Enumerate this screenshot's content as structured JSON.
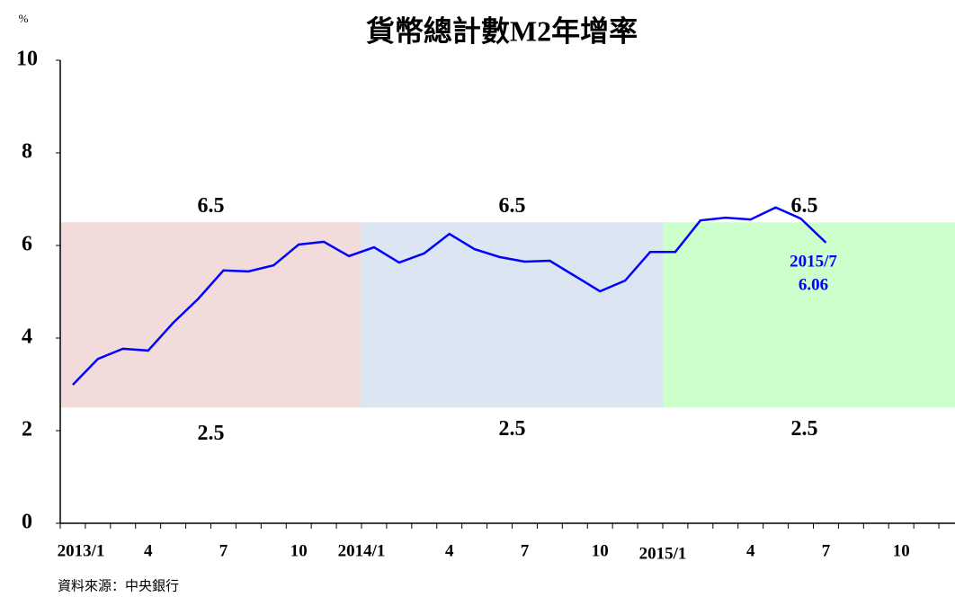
{
  "chart_data": {
    "type": "line",
    "title": "貨幣總計數M2年增率",
    "y_unit": "%",
    "source": "資料來源：中央銀行",
    "categories": [
      "2013/1",
      null,
      null,
      "4",
      null,
      null,
      "7",
      null,
      null,
      "10",
      null,
      null,
      "2014/1",
      null,
      null,
      "4",
      null,
      null,
      "7",
      null,
      null,
      "10",
      null,
      null,
      "2015/1",
      null,
      null,
      "4",
      null,
      null,
      "7",
      null,
      null,
      "10",
      null,
      null
    ],
    "series": [
      {
        "name": "M2",
        "color": "#0000ff",
        "values": [
          2.99,
          3.55,
          3.77,
          3.73,
          4.33,
          4.85,
          5.46,
          5.44,
          5.57,
          6.02,
          6.08,
          5.77,
          5.96,
          5.63,
          5.83,
          6.25,
          5.92,
          5.75,
          5.65,
          5.67,
          5.34,
          5.01,
          5.24,
          5.86,
          5.86,
          6.54,
          6.6,
          6.56,
          6.82,
          6.58,
          6.06,
          null,
          null,
          null,
          null,
          null
        ]
      }
    ],
    "target_ranges": [
      {
        "low": 2.5,
        "high": 6.5,
        "color": "#f2dcdb"
      },
      {
        "low": 2.5,
        "high": 6.5,
        "color": "#dce6f2"
      },
      {
        "low": 2.5,
        "high": 6.5,
        "color": "#ccffcc"
      }
    ],
    "annotation": {
      "label": "2015/7",
      "value": 6.06,
      "index": 30
    },
    "ylim": [
      0,
      10
    ],
    "yticks": [
      0,
      2,
      4,
      6,
      8,
      10
    ],
    "grid": false
  }
}
